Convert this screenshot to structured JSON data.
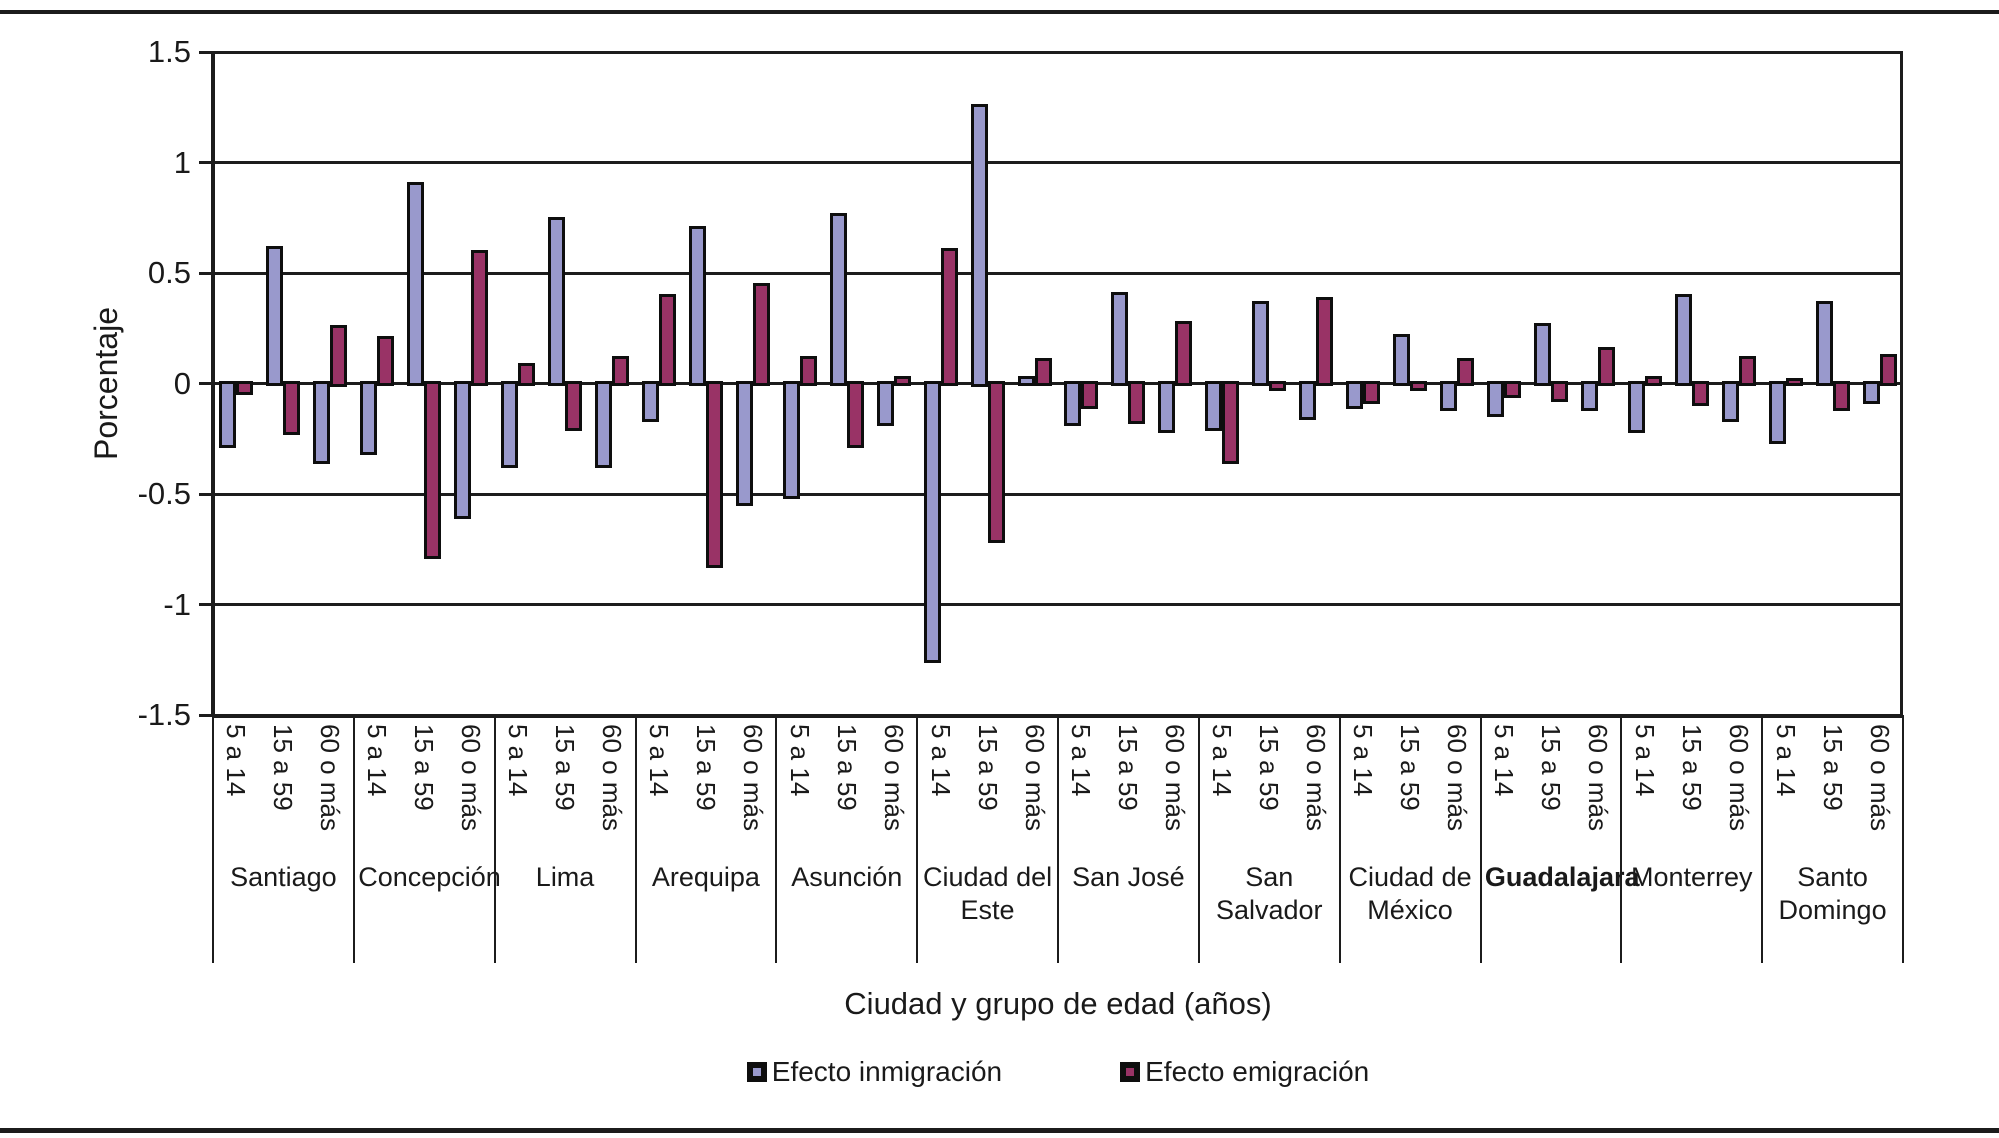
{
  "figure": {
    "ylabel": "Porcentaje",
    "xlabel": "Ciudad y grupo de edad (años)"
  },
  "chart_data": {
    "type": "bar",
    "title": "",
    "xlabel": "Ciudad y grupo de edad (años)",
    "ylabel": "Porcentaje",
    "ylim": [
      -1.5,
      1.5
    ],
    "grid": true,
    "legend_position": "bottom",
    "yticks": [
      {
        "label": "1.5",
        "value": 1.5
      },
      {
        "label": "1",
        "value": 1.0
      },
      {
        "label": "0.5",
        "value": 0.5
      },
      {
        "label": "0",
        "value": 0.0
      },
      {
        "label": "-0.5",
        "value": -0.5
      },
      {
        "label": "-1",
        "value": -1.0
      },
      {
        "label": "-1.5",
        "value": -1.5
      }
    ],
    "age_groups": [
      "5 a 14",
      "15 a 59",
      "60 o más"
    ],
    "categories": [
      "Santiago",
      "Concepción",
      "Lima",
      "Arequipa",
      "Asunción",
      "Ciudad del Este",
      "San José",
      "San Salvador",
      "Ciudad de México",
      "Guadalajara",
      "Monterrey",
      "Santo Domingo"
    ],
    "bold_categories": [
      "Guadalajara"
    ],
    "series": [
      {
        "name": "Efecto inmigración",
        "color": "#9999CC",
        "values": [
          [
            -0.28,
            0.61,
            -0.35
          ],
          [
            -0.31,
            0.9,
            -0.6
          ],
          [
            -0.37,
            0.74,
            -0.37
          ],
          [
            -0.16,
            0.7,
            -0.54
          ],
          [
            -0.51,
            0.76,
            -0.18
          ],
          [
            -1.25,
            1.25,
            0.02
          ],
          [
            -0.18,
            0.4,
            -0.21
          ],
          [
            -0.2,
            0.36,
            -0.15
          ],
          [
            -0.1,
            0.21,
            -0.11
          ],
          [
            -0.14,
            0.26,
            -0.11
          ],
          [
            -0.21,
            0.39,
            -0.16
          ],
          [
            -0.26,
            0.36,
            -0.08
          ]
        ]
      },
      {
        "name": "Efecto emigración",
        "color": "#993366",
        "values": [
          [
            -0.04,
            -0.22,
            0.25
          ],
          [
            0.2,
            -0.78,
            0.59
          ],
          [
            0.08,
            -0.2,
            0.11
          ],
          [
            0.39,
            -0.82,
            0.44
          ],
          [
            0.11,
            -0.28,
            0.02
          ],
          [
            0.6,
            -0.71,
            0.1
          ],
          [
            -0.1,
            -0.17,
            0.27
          ],
          [
            -0.35,
            -0.02,
            0.38
          ],
          [
            -0.08,
            -0.02,
            0.1
          ],
          [
            -0.05,
            -0.07,
            0.15
          ],
          [
            0.02,
            -0.09,
            0.11
          ],
          [
            0.01,
            -0.11,
            0.12
          ]
        ]
      }
    ]
  }
}
